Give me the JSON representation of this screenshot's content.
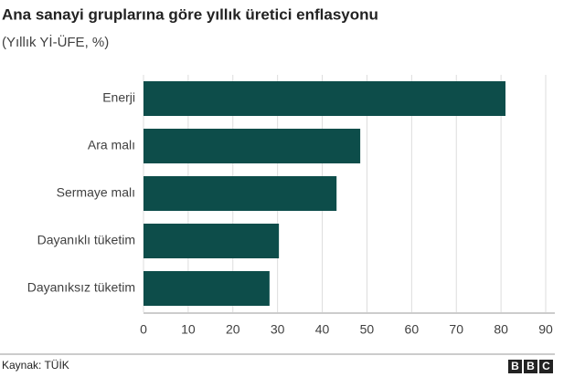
{
  "chart_data": {
    "type": "barh",
    "title": "Ana sanayi gruplarına göre yıllık üretici enflasyonu",
    "subtitle": "(Yıllık Yİ-ÜFE, %)",
    "categories": [
      "Enerji",
      "Ara malı",
      "Sermaye malı",
      "Dayanıklı tüketim",
      "Dayanıksız tüketim"
    ],
    "values": [
      81.0,
      48.5,
      43.2,
      30.3,
      28.2
    ],
    "color": "#0d4d4a",
    "xlim": [
      0,
      90
    ],
    "xticks": [
      0,
      10,
      20,
      30,
      40,
      50,
      60,
      70,
      80,
      90
    ],
    "grid": true,
    "source": "Kaynak: TÜİK",
    "logo": [
      "B",
      "B",
      "C"
    ]
  }
}
